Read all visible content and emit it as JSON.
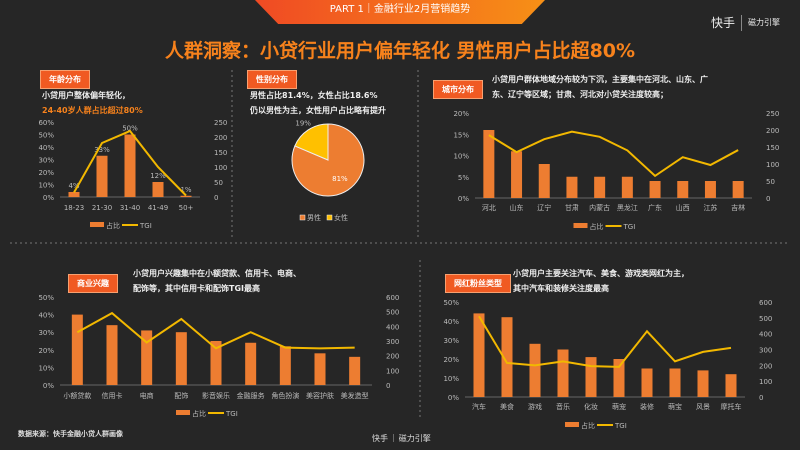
{
  "header": {
    "banner": "PART 1｜金融行业2月营销趋势",
    "logo_kuaishou": "快手",
    "logo_magnetic": "磁力引擎",
    "title": "人群洞察：小贷行业用户偏年轻化 男性用户占比超80%"
  },
  "colors": {
    "bar": "#ed7d31",
    "line": "#f2b800",
    "accent": "#f05a22",
    "female": "#ffc000"
  },
  "panels": {
    "age": {
      "tag": "年龄分布",
      "desc1": "小贷用户整体偏年轻化，",
      "desc2": "24-40岁人群占比超过80%"
    },
    "gender": {
      "tag": "性别分布",
      "desc1": "男性占比81.4%，女性占比18.6%",
      "desc2": "仍以男性为主，女性用户占比略有提升"
    },
    "city": {
      "tag": "城市分布",
      "desc1": "小贷用户群体地域分布较为下沉，主要集中在河北、山东、广",
      "desc2": "东、辽宁等区域；甘肃、河北对小贷关注度较高；"
    },
    "interest": {
      "tag": "商业兴趣",
      "desc1": "小贷用户兴趣集中在小额贷款、信用卡、电商、",
      "desc2": "配饰等，其中信用卡和配饰TGI最高"
    },
    "influencer": {
      "tag": "网红粉丝类型",
      "desc1": "小贷用户主要关注汽车、美食、游戏类网红为主，",
      "desc2": "其中汽车和装修关注度最高"
    }
  },
  "footer": {
    "source": "数据来源：快手金融小贷人群画像",
    "logo_kuaishou": "快手",
    "logo_magnetic": "磁力引擎"
  },
  "chart_data": [
    {
      "type": "bar+line",
      "id": "age",
      "categories": [
        "18-23",
        "21-30",
        "31-40",
        "41-49",
        "50+"
      ],
      "series": [
        {
          "name": "占比",
          "type": "bar",
          "values": [
            4,
            33,
            50,
            12,
            1
          ],
          "data_labels": [
            "4%",
            "33%",
            "50%",
            "12%",
            "1%"
          ]
        },
        {
          "name": "TGI",
          "type": "line",
          "values": [
            15,
            180,
            220,
            100,
            5
          ]
        }
      ],
      "ylim": [
        0,
        60
      ],
      "yticks": [
        "0%",
        "10%",
        "20%",
        "30%",
        "40%",
        "50%",
        "60%"
      ],
      "y2lim": [
        0,
        250
      ],
      "y2ticks": [
        "0",
        "50",
        "100",
        "150",
        "200",
        "250"
      ],
      "legend": "bottom"
    },
    {
      "type": "pie",
      "id": "gender",
      "categories": [
        "男性",
        "女性"
      ],
      "values": [
        81.4,
        18.6
      ],
      "data_labels": [
        "81%",
        "19%"
      ],
      "legend": "bottom"
    },
    {
      "type": "bar+line",
      "id": "city",
      "categories": [
        "河北",
        "山东",
        "辽宁",
        "甘肃",
        "内蒙古",
        "黑龙江",
        "广东",
        "山西",
        "江苏",
        "吉林"
      ],
      "series": [
        {
          "name": "占比",
          "type": "bar",
          "values": [
            16,
            11,
            8,
            5,
            5,
            5,
            4,
            4,
            4,
            4
          ]
        },
        {
          "name": "TGI",
          "type": "line",
          "values": [
            185,
            135,
            173,
            195,
            180,
            140,
            65,
            120,
            97,
            141
          ]
        }
      ],
      "ylim": [
        0,
        20
      ],
      "yticks": [
        "0%",
        "5%",
        "10%",
        "15%",
        "20%"
      ],
      "y2lim": [
        0,
        250
      ],
      "y2ticks": [
        "0",
        "50",
        "100",
        "150",
        "200",
        "250"
      ],
      "legend": "bottom"
    },
    {
      "type": "bar+line",
      "id": "interest",
      "categories": [
        "小额贷款",
        "信用卡",
        "电商",
        "配饰",
        "影音娱乐",
        "金融服务",
        "角色扮演",
        "美容护肤",
        "美发造型"
      ],
      "series": [
        {
          "name": "占比",
          "type": "bar",
          "values": [
            40,
            34,
            31,
            30,
            25,
            24,
            22,
            18,
            16
          ]
        },
        {
          "name": "TGI",
          "type": "line",
          "values": [
            360,
            490,
            290,
            450,
            250,
            360,
            255,
            250,
            255
          ]
        }
      ],
      "ylim": [
        0,
        50
      ],
      "yticks": [
        "0%",
        "10%",
        "20%",
        "30%",
        "40%",
        "50%"
      ],
      "y2lim": [
        0,
        600
      ],
      "y2ticks": [
        "0",
        "100",
        "200",
        "300",
        "400",
        "500",
        "600"
      ],
      "legend": "bottom"
    },
    {
      "type": "bar+line",
      "id": "influencer",
      "categories": [
        "汽车",
        "美食",
        "游戏",
        "音乐",
        "化妆",
        "萌宠",
        "装修",
        "萌宝",
        "风景",
        "摩托车"
      ],
      "series": [
        {
          "name": "占比",
          "type": "bar",
          "values": [
            44,
            42,
            28,
            25,
            21,
            20,
            15,
            15,
            14,
            12
          ]
        },
        {
          "name": "TGI",
          "type": "line",
          "values": [
            510,
            215,
            200,
            225,
            195,
            190,
            415,
            225,
            285,
            310
          ]
        }
      ],
      "ylim": [
        0,
        50
      ],
      "yticks": [
        "0%",
        "10%",
        "20%",
        "30%",
        "40%",
        "50%"
      ],
      "y2lim": [
        0,
        600
      ],
      "y2ticks": [
        "0",
        "100",
        "200",
        "300",
        "400",
        "500",
        "600"
      ],
      "legend": "bottom"
    }
  ]
}
